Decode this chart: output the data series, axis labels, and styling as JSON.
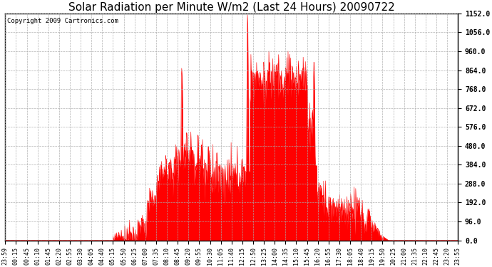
{
  "title": "Solar Radiation per Minute W/m2 (Last 24 Hours) 20090722",
  "copyright_text": "Copyright 2009 Cartronics.com",
  "y_min": 0.0,
  "y_max": 1152.0,
  "y_ticks": [
    0.0,
    96.0,
    192.0,
    288.0,
    384.0,
    480.0,
    576.0,
    672.0,
    768.0,
    864.0,
    960.0,
    1056.0,
    1152.0
  ],
  "x_tick_labels": [
    "23:59",
    "00:15",
    "00:45",
    "01:10",
    "01:45",
    "02:20",
    "02:55",
    "03:30",
    "04:05",
    "04:40",
    "05:15",
    "05:50",
    "06:25",
    "07:00",
    "07:35",
    "08:10",
    "08:45",
    "09:20",
    "09:55",
    "10:30",
    "11:05",
    "11:40",
    "12:15",
    "12:50",
    "13:25",
    "14:00",
    "14:35",
    "15:10",
    "15:45",
    "16:20",
    "16:55",
    "17:30",
    "18:05",
    "18:40",
    "19:15",
    "19:50",
    "20:25",
    "21:00",
    "21:35",
    "22:10",
    "22:45",
    "23:20",
    "23:55"
  ],
  "fill_color": "#FF0000",
  "line_color": "#FF0000",
  "grid_color": "#AAAAAA",
  "bg_color": "#FFFFFF",
  "title_fontsize": 11,
  "copyright_fontsize": 6.5,
  "tick_fontsize": 6,
  "ytick_fontsize": 7,
  "dashed_line_color": "#FF0000",
  "dashed_line_y": 0.0,
  "n_points": 1440
}
